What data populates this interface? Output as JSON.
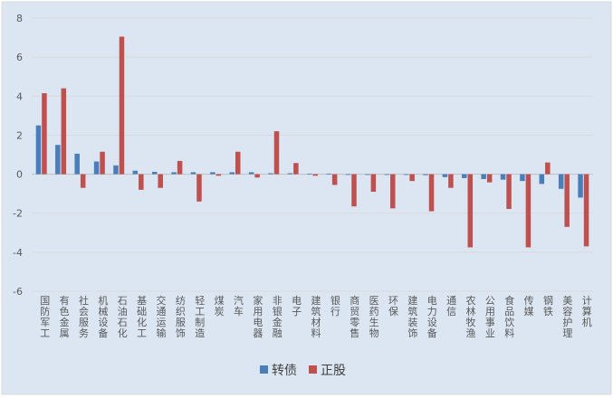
{
  "chart_data": {
    "type": "bar",
    "title": "",
    "xlabel": "",
    "ylabel": "",
    "ylim": [
      -6,
      8
    ],
    "yticks": [
      "8",
      "6",
      "4",
      "2",
      "0",
      "-2",
      "-4",
      "-6"
    ],
    "ytick_values": [
      8,
      6,
      4,
      2,
      0,
      -2,
      -4,
      -6
    ],
    "grid": true,
    "legend_position": "bottom",
    "categories": [
      "国防军工",
      "有色金属",
      "社会服务",
      "机械设备",
      "石油石化",
      "基础化工",
      "交通运输",
      "纺织服饰",
      "轻工制造",
      "煤炭",
      "汽车",
      "家用电器",
      "非银金融",
      "电子",
      "建筑材料",
      "银行",
      "商贸零售",
      "医药生物",
      "环保",
      "建筑装饰",
      "电力设备",
      "通信",
      "农林牧渔",
      "公用事业",
      "食品饮料",
      "传媒",
      "钢铁",
      "美容护理",
      "计算机"
    ],
    "series": [
      {
        "name": "转债",
        "color": "#4a7ebb",
        "values": [
          2.5,
          1.5,
          1.05,
          0.65,
          0.45,
          0.18,
          0.12,
          0.1,
          0.1,
          0.1,
          0.1,
          0.1,
          0.05,
          0.05,
          0.03,
          0.03,
          -0.02,
          -0.01,
          -0.01,
          -0.03,
          -0.05,
          -0.15,
          -0.2,
          -0.25,
          -0.28,
          -0.35,
          -0.5,
          -0.75,
          -1.2
        ]
      },
      {
        "name": "正股",
        "color": "#c0504d",
        "values": [
          4.15,
          4.4,
          -0.7,
          1.15,
          7.05,
          -0.8,
          -0.7,
          0.68,
          -1.4,
          -0.08,
          1.15,
          -0.17,
          2.2,
          0.57,
          -0.08,
          -0.55,
          -1.65,
          -0.9,
          -1.75,
          -0.35,
          -1.9,
          -0.7,
          -3.75,
          -0.42,
          -1.78,
          -3.75,
          0.6,
          -2.7,
          -3.7
        ]
      }
    ]
  }
}
